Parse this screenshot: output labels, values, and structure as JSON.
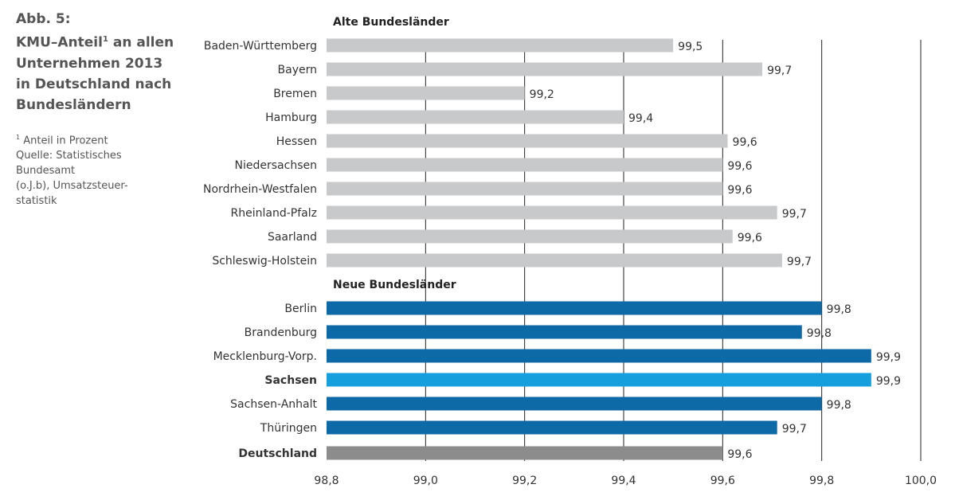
{
  "figure": {
    "label": "Abb. 5:",
    "title_pre": "KMU–Anteil",
    "title_sup": "1",
    "title_line1_rest": " an allen",
    "title_line2": "Unternehmen 2013",
    "title_line3": "in Deutschland nach",
    "title_line4": "Bundesländern",
    "footnote_sup": "1",
    "footnote": " Anteil in Prozent",
    "source_lines": [
      "Quelle: Statistisches",
      "Bundesamt",
      "(o.J.b), Umsatzsteuer-",
      "statistik"
    ]
  },
  "colors": {
    "alte": "#c8c9cb",
    "neue": "#0e6aa6",
    "highlight": "#159fdc",
    "total": "#8c8c8c",
    "highlight_text": "#159fdc"
  },
  "chart_data": {
    "type": "bar",
    "orientation": "horizontal",
    "xlim": [
      98.8,
      100.0
    ],
    "xticks": [
      "98,8",
      "99,0",
      "99,2",
      "99,4",
      "99,6",
      "99,8",
      "100,0"
    ],
    "xtick_values": [
      98.8,
      99.0,
      99.2,
      99.4,
      99.6,
      99.8,
      100.0
    ],
    "grid": "vertical",
    "groups": [
      {
        "name": "Alte Bundesländer",
        "style": "alte",
        "categories": [
          "Baden-Württemberg",
          "Bayern",
          "Bremen",
          "Hamburg",
          "Hessen",
          "Niedersachsen",
          "Nordrhein-Westfalen",
          "Rheinland-Pfalz",
          "Saarland",
          "Schleswig-Holstein"
        ],
        "values": [
          99.5,
          99.68,
          99.2,
          99.4,
          99.61,
          99.6,
          99.6,
          99.71,
          99.62,
          99.72
        ],
        "labels": [
          "99,5",
          "99,7",
          "99,2",
          "99,4",
          "99,6",
          "99,6",
          "99,6",
          "99,7",
          "99,6",
          "99,7"
        ]
      },
      {
        "name": "Neue Bundesländer",
        "style": "neue",
        "categories": [
          "Berlin",
          "Brandenburg",
          "Mecklenburg-Vorp.",
          "Sachsen",
          "Sachsen-Anhalt",
          "Thüringen"
        ],
        "values": [
          99.8,
          99.76,
          99.9,
          99.9,
          99.8,
          99.71
        ],
        "labels": [
          "99,8",
          "99,8",
          "99,9",
          "99,9",
          "99,8",
          "99,7"
        ],
        "highlight": "Sachsen"
      },
      {
        "name": "",
        "style": "total",
        "categories": [
          "Deutschland"
        ],
        "values": [
          99.6
        ],
        "labels": [
          "99,6"
        ],
        "bold": true
      }
    ]
  }
}
